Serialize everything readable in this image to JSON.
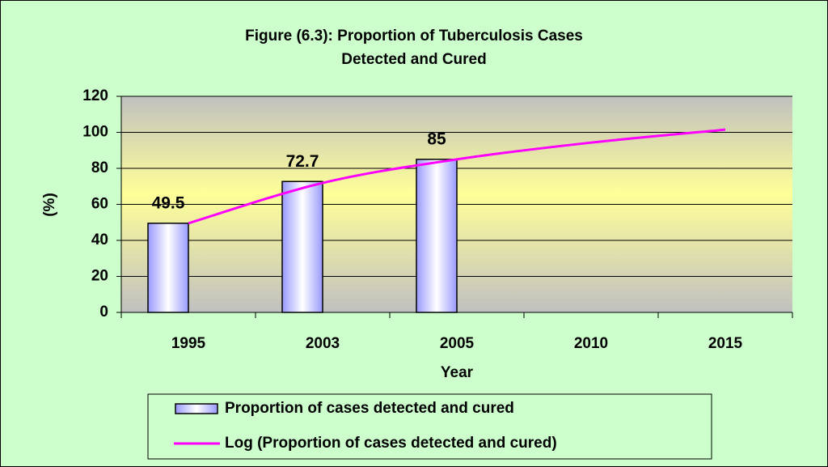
{
  "chart_data": {
    "type": "bar",
    "title": [
      "Figure (6.3): Proportion of Tuberculosis Cases",
      "Detected and Cured"
    ],
    "x_label": "Year",
    "y_label": "(%)",
    "categories": [
      "1995",
      "2003",
      "2005",
      "2010",
      "2015"
    ],
    "series": [
      {
        "name": "Proportion of cases detected and cured",
        "type": "bar",
        "color": "#9999ff",
        "values": [
          49.5,
          72.7,
          85,
          null,
          null
        ]
      },
      {
        "name": "Log (Proportion of cases detected and cured)",
        "type": "line",
        "color": "#ff00ff",
        "values": [
          49.5,
          71.9,
          85.0,
          94.3,
          101.5
        ]
      }
    ],
    "ylim": [
      0,
      120
    ],
    "yticks": [
      0,
      20,
      40,
      60,
      80,
      100,
      120
    ],
    "grid": true,
    "legend": "bottom"
  }
}
